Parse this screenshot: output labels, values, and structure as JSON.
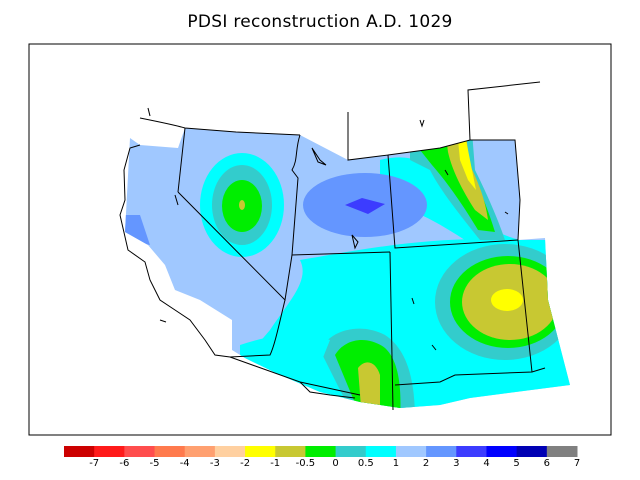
{
  "title": "PDSI reconstruction A.D. 1029",
  "legend": {
    "colors": [
      "#cc0000",
      "#ff1a1a",
      "#ff4d4d",
      "#ff7a4d",
      "#ffa070",
      "#ffd0a0",
      "#ffff00",
      "#c8c832",
      "#00ee00",
      "#33cccc",
      "#00ffff",
      "#a0c8ff",
      "#6496ff",
      "#3c3cff",
      "#0000ff",
      "#0000b4",
      "#808080"
    ],
    "tick_labels": [
      "-7",
      "-6",
      "-5",
      "-4",
      "-3",
      "-2",
      "-1",
      "-0.5",
      "0",
      "0.5",
      "1",
      "2",
      "3",
      "4",
      "5",
      "6",
      "7"
    ]
  }
}
